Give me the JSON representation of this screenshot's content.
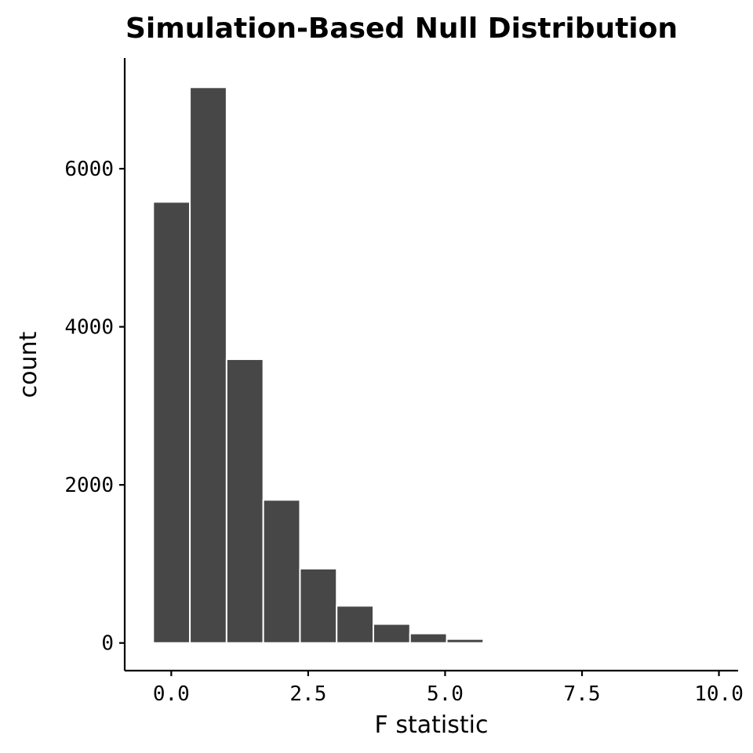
{
  "chart_data": {
    "type": "bar",
    "title": "Simulation-Based Null Distribution",
    "xlabel": "F statistic",
    "ylabel": "count",
    "bar_color": "#474747",
    "background": "#ffffff",
    "grid": false,
    "xlim": [
      -0.85,
      10.35
    ],
    "ylim": [
      -350,
      7400
    ],
    "x_ticks": [
      0,
      2.5,
      5,
      7.5,
      10
    ],
    "x_tick_labels": [
      "0.0",
      "2.5",
      "5.0",
      "7.5",
      "10.0"
    ],
    "y_ticks": [
      0,
      2000,
      4000,
      6000
    ],
    "y_tick_labels": [
      "0",
      "2000",
      "4000",
      "6000"
    ],
    "bins": [
      {
        "x0": -0.33,
        "x1": 0.34,
        "count": 5580
      },
      {
        "x0": 0.34,
        "x1": 1.01,
        "count": 7030
      },
      {
        "x0": 1.01,
        "x1": 1.68,
        "count": 3590
      },
      {
        "x0": 1.68,
        "x1": 2.35,
        "count": 1810
      },
      {
        "x0": 2.35,
        "x1": 3.02,
        "count": 940
      },
      {
        "x0": 3.02,
        "x1": 3.69,
        "count": 470
      },
      {
        "x0": 3.69,
        "x1": 4.36,
        "count": 240
      },
      {
        "x0": 4.36,
        "x1": 5.03,
        "count": 120
      },
      {
        "x0": 5.03,
        "x1": 5.7,
        "count": 50
      },
      {
        "x0": 5.7,
        "x1": 6.37,
        "count": 15
      }
    ]
  }
}
